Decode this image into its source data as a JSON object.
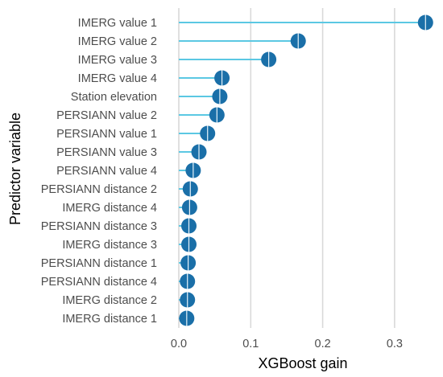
{
  "colors": {
    "stem": "#5bc8e3",
    "marker": "#1a6fa8",
    "marker_divider": "#e6f3fb",
    "grid": "#d9d9d9",
    "tick_text": "#4d4d4d"
  },
  "chart_data": {
    "type": "lollipop",
    "title": "",
    "xlabel": "XGBoost gain",
    "ylabel": "Predictor variable",
    "xlim": [
      -0.01,
      0.35
    ],
    "x_ticks": [
      0.0,
      0.1,
      0.2,
      0.3
    ],
    "x_tick_labels": [
      "0.0",
      "0.1",
      "0.2",
      "0.3"
    ],
    "grid": "vertical",
    "legend": "none",
    "categories": [
      "IMERG value 1",
      "IMERG value 2",
      "IMERG value 3",
      "IMERG value 4",
      "Station elevation",
      "PERSIANN value 2",
      "PERSIANN value 1",
      "PERSIANN value 3",
      "PERSIANN value 4",
      "PERSIANN distance 2",
      "IMERG distance 4",
      "PERSIANN distance 3",
      "IMERG distance 3",
      "PERSIANN distance 1",
      "PERSIANN distance 4",
      "IMERG distance 2",
      "IMERG distance 1"
    ],
    "values": [
      0.343,
      0.166,
      0.125,
      0.06,
      0.057,
      0.053,
      0.04,
      0.028,
      0.02,
      0.016,
      0.015,
      0.014,
      0.014,
      0.013,
      0.012,
      0.012,
      0.011
    ]
  }
}
